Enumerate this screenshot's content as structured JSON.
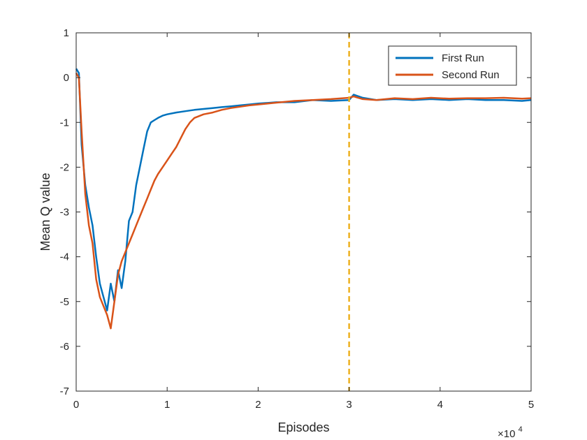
{
  "chart_data": {
    "type": "line",
    "title": "",
    "xlabel": "Episodes",
    "ylabel": "Mean Q value",
    "x_multiplier_label": "×10",
    "x_multiplier_exponent": "4",
    "xlim": [
      0,
      5
    ],
    "ylim": [
      -7,
      1
    ],
    "xticks": [
      0,
      1,
      2,
      3,
      4,
      5
    ],
    "yticks": [
      -7,
      -6,
      -5,
      -4,
      -3,
      -2,
      -1,
      0,
      1
    ],
    "xtick_labels": [
      "0",
      "1",
      "2",
      "3",
      "4",
      "5"
    ],
    "ytick_labels": [
      "-7",
      "-6",
      "-5",
      "-4",
      "-3",
      "-2",
      "-1",
      "0",
      "1"
    ],
    "grid": false,
    "legend_position": "top-right",
    "vertical_marker": {
      "x": 3.0,
      "style": "dashed",
      "color": "#EDB120"
    },
    "series": [
      {
        "name": "First Run",
        "color": "#0072BD",
        "points": [
          [
            0.0,
            0.2
          ],
          [
            0.03,
            0.1
          ],
          [
            0.06,
            -1.5
          ],
          [
            0.1,
            -2.4
          ],
          [
            0.14,
            -2.9
          ],
          [
            0.18,
            -3.3
          ],
          [
            0.22,
            -4.0
          ],
          [
            0.26,
            -4.6
          ],
          [
            0.3,
            -4.9
          ],
          [
            0.34,
            -5.2
          ],
          [
            0.38,
            -4.6
          ],
          [
            0.42,
            -5.0
          ],
          [
            0.46,
            -4.3
          ],
          [
            0.5,
            -4.7
          ],
          [
            0.54,
            -4.1
          ],
          [
            0.58,
            -3.2
          ],
          [
            0.62,
            -3.0
          ],
          [
            0.66,
            -2.4
          ],
          [
            0.7,
            -2.0
          ],
          [
            0.74,
            -1.6
          ],
          [
            0.78,
            -1.2
          ],
          [
            0.82,
            -1.0
          ],
          [
            0.86,
            -0.95
          ],
          [
            0.9,
            -0.9
          ],
          [
            0.95,
            -0.85
          ],
          [
            1.0,
            -0.82
          ],
          [
            1.1,
            -0.78
          ],
          [
            1.2,
            -0.75
          ],
          [
            1.3,
            -0.72
          ],
          [
            1.4,
            -0.7
          ],
          [
            1.5,
            -0.68
          ],
          [
            1.6,
            -0.66
          ],
          [
            1.7,
            -0.64
          ],
          [
            1.8,
            -0.62
          ],
          [
            1.9,
            -0.6
          ],
          [
            2.0,
            -0.58
          ],
          [
            2.2,
            -0.55
          ],
          [
            2.4,
            -0.55
          ],
          [
            2.6,
            -0.5
          ],
          [
            2.8,
            -0.52
          ],
          [
            3.0,
            -0.5
          ],
          [
            3.05,
            -0.38
          ],
          [
            3.15,
            -0.45
          ],
          [
            3.3,
            -0.5
          ],
          [
            3.5,
            -0.48
          ],
          [
            3.7,
            -0.5
          ],
          [
            3.9,
            -0.48
          ],
          [
            4.1,
            -0.5
          ],
          [
            4.3,
            -0.48
          ],
          [
            4.5,
            -0.5
          ],
          [
            4.7,
            -0.5
          ],
          [
            4.9,
            -0.52
          ],
          [
            5.0,
            -0.5
          ]
        ]
      },
      {
        "name": "Second Run",
        "color": "#D95319",
        "points": [
          [
            0.0,
            0.1
          ],
          [
            0.03,
            0.0
          ],
          [
            0.06,
            -1.2
          ],
          [
            0.1,
            -2.6
          ],
          [
            0.14,
            -3.3
          ],
          [
            0.18,
            -3.7
          ],
          [
            0.22,
            -4.5
          ],
          [
            0.26,
            -4.9
          ],
          [
            0.3,
            -5.1
          ],
          [
            0.34,
            -5.3
          ],
          [
            0.38,
            -5.6
          ],
          [
            0.42,
            -5.0
          ],
          [
            0.46,
            -4.4
          ],
          [
            0.5,
            -4.1
          ],
          [
            0.54,
            -3.9
          ],
          [
            0.58,
            -3.7
          ],
          [
            0.62,
            -3.5
          ],
          [
            0.66,
            -3.3
          ],
          [
            0.7,
            -3.1
          ],
          [
            0.74,
            -2.9
          ],
          [
            0.78,
            -2.7
          ],
          [
            0.82,
            -2.5
          ],
          [
            0.86,
            -2.3
          ],
          [
            0.9,
            -2.15
          ],
          [
            0.95,
            -2.0
          ],
          [
            1.0,
            -1.85
          ],
          [
            1.05,
            -1.7
          ],
          [
            1.1,
            -1.55
          ],
          [
            1.15,
            -1.35
          ],
          [
            1.2,
            -1.15
          ],
          [
            1.25,
            -1.0
          ],
          [
            1.3,
            -0.9
          ],
          [
            1.4,
            -0.82
          ],
          [
            1.5,
            -0.78
          ],
          [
            1.6,
            -0.72
          ],
          [
            1.7,
            -0.68
          ],
          [
            1.8,
            -0.65
          ],
          [
            1.9,
            -0.62
          ],
          [
            2.0,
            -0.6
          ],
          [
            2.2,
            -0.56
          ],
          [
            2.4,
            -0.52
          ],
          [
            2.6,
            -0.5
          ],
          [
            2.8,
            -0.48
          ],
          [
            3.0,
            -0.45
          ],
          [
            3.05,
            -0.42
          ],
          [
            3.15,
            -0.48
          ],
          [
            3.3,
            -0.5
          ],
          [
            3.5,
            -0.46
          ],
          [
            3.7,
            -0.48
          ],
          [
            3.9,
            -0.45
          ],
          [
            4.1,
            -0.47
          ],
          [
            4.3,
            -0.46
          ],
          [
            4.5,
            -0.46
          ],
          [
            4.7,
            -0.45
          ],
          [
            4.9,
            -0.47
          ],
          [
            5.0,
            -0.46
          ]
        ]
      }
    ]
  }
}
